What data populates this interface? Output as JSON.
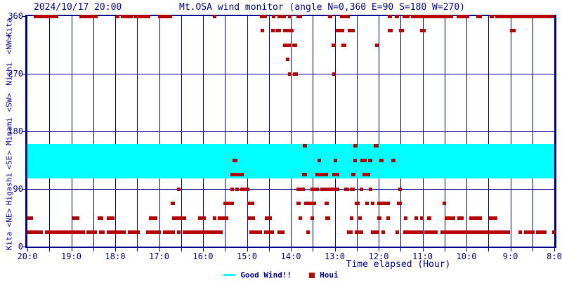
{
  "header": {
    "timestamp": "2024/10/17 20:00",
    "title": "Mt.OSA wind monitor (angle N=0,360 E=90 S=180 W=270)"
  },
  "colors": {
    "axis": "#000090",
    "marker": "#b80000",
    "band": "#00ffff",
    "background": "#ffffff"
  },
  "chart_data": {
    "type": "scatter",
    "title": "Mt.OSA wind monitor (angle N=0,360 E=90 S=180 W=270)",
    "timestamp": "2024/10/17 20:00",
    "xlabel": "Time elapsed (Hour)",
    "x_axis": {
      "left_hour": 20,
      "right_hour": 8,
      "tick_labels": [
        "20:0",
        "19:0",
        "18:0",
        "17:0",
        "16:0",
        "15:0",
        "14:0",
        "13:0",
        "12:0",
        "11:0",
        "10:0",
        "9:0",
        "8:0"
      ],
      "minor_ticks_per_hour": 2,
      "grid": true
    },
    "y_axis": {
      "min": 0,
      "max": 360,
      "tick_values": [
        360,
        270,
        180,
        90,
        0
      ],
      "grid": true,
      "compass": [
        {
          "label": "Kita",
          "value": 360
        },
        {
          "label": "<NW>",
          "value": 315
        },
        {
          "label": "Nishi",
          "value": 270
        },
        {
          "label": "<SW>",
          "value": 225
        },
        {
          "label": "Minami",
          "value": 180
        },
        {
          "label": "<SE>",
          "value": 135
        },
        {
          "label": "Higashi",
          "value": 90
        },
        {
          "label": "<NE>",
          "value": 45
        },
        {
          "label": "Kita",
          "value": 0
        }
      ]
    },
    "good_wind_band": {
      "label": "Good Wind!!",
      "range_deg": [
        107,
        160
      ]
    },
    "series": {
      "name": "Houi",
      "marker": "square",
      "segments_by_direction": [
        {
          "dir": 360,
          "t": [
            [
              19.29,
              19.85
            ],
            [
              18.4,
              18.81
            ],
            [
              17.92,
              17.98
            ],
            [
              17.6,
              17.88
            ],
            [
              17.2,
              17.59
            ],
            [
              16.7,
              17.02
            ],
            [
              15.71,
              15.78
            ],
            [
              14.54,
              14.7
            ],
            [
              14.36,
              14.44
            ],
            [
              14.12,
              14.31
            ],
            [
              13.98,
              14.06
            ],
            [
              13.74,
              13.88
            ],
            [
              13.05,
              13.16
            ],
            [
              12.65,
              12.88
            ],
            [
              11.7,
              11.79
            ],
            [
              11.54,
              11.64
            ],
            [
              11.3,
              11.46
            ],
            [
              10.31,
              11.26
            ],
            [
              9.94,
              10.22
            ],
            [
              9.65,
              9.78
            ],
            [
              9.38,
              9.48
            ],
            [
              8.0,
              9.34
            ]
          ]
        },
        {
          "dir": 337.5,
          "t": [
            [
              14.61,
              14.69
            ],
            [
              14.38,
              14.45
            ],
            [
              14.22,
              14.36
            ],
            [
              13.93,
              14.17
            ],
            [
              12.79,
              12.97
            ],
            [
              12.55,
              12.71
            ],
            [
              11.68,
              11.79
            ],
            [
              11.43,
              11.54
            ],
            [
              10.93,
              11.06
            ],
            [
              8.88,
              9.01
            ]
          ]
        },
        {
          "dir": 315,
          "t": [
            [
              13.98,
              14.17
            ],
            [
              13.85,
              13.97
            ],
            [
              12.97,
              13.08
            ],
            [
              12.73,
              12.85
            ],
            [
              12.0,
              12.08
            ]
          ]
        },
        {
          "dir": 292.5,
          "t": [
            [
              14.04,
              14.12
            ]
          ]
        },
        {
          "dir": 270,
          "t": [
            [
              14.0,
              14.07
            ],
            [
              13.84,
              13.96
            ],
            [
              12.97,
              13.06
            ]
          ]
        },
        {
          "dir": 157.5,
          "t": [
            [
              13.64,
              13.73
            ],
            [
              12.48,
              12.58
            ],
            [
              12.0,
              12.11
            ]
          ]
        },
        {
          "dir": 135,
          "t": [
            [
              15.21,
              15.33
            ],
            [
              13.31,
              13.4
            ],
            [
              12.94,
              13.03
            ],
            [
              12.49,
              12.58
            ],
            [
              12.28,
              12.42
            ],
            [
              12.15,
              12.24
            ],
            [
              11.89,
              11.98
            ],
            [
              11.62,
              11.72
            ]
          ]
        },
        {
          "dir": 112.5,
          "t": [
            [
              15.07,
              15.37
            ],
            [
              13.63,
              13.74
            ],
            [
              13.15,
              13.44
            ],
            [
              12.9,
              13.06
            ],
            [
              12.53,
              12.63
            ],
            [
              12.2,
              12.37
            ]
          ]
        },
        {
          "dir": 90,
          "t": [
            [
              16.51,
              16.6
            ],
            [
              15.29,
              15.38
            ],
            [
              15.18,
              15.26
            ],
            [
              14.95,
              15.15
            ],
            [
              13.68,
              13.87
            ],
            [
              13.36,
              13.55
            ],
            [
              12.89,
              13.33
            ],
            [
              12.68,
              12.79
            ],
            [
              12.54,
              12.66
            ],
            [
              12.35,
              12.44
            ],
            [
              12.15,
              12.23
            ],
            [
              11.48,
              11.55
            ]
          ]
        },
        {
          "dir": 67.5,
          "t": [
            [
              16.64,
              16.74
            ],
            [
              15.3,
              15.54
            ],
            [
              14.83,
              14.99
            ],
            [
              13.77,
              13.87
            ],
            [
              13.43,
              13.69
            ],
            [
              13.13,
              13.24
            ],
            [
              12.44,
              12.54
            ],
            [
              12.22,
              12.31
            ],
            [
              12.1,
              12.18
            ],
            [
              11.75,
              12.03
            ],
            [
              11.48,
              11.59
            ],
            [
              10.46,
              10.54
            ]
          ]
        },
        {
          "dir": 45,
          "t": [
            [
              19.88,
              20.0
            ],
            [
              18.81,
              18.98
            ],
            [
              18.27,
              18.4
            ],
            [
              18.02,
              18.2
            ],
            [
              17.04,
              17.23
            ],
            [
              16.39,
              16.71
            ],
            [
              15.93,
              16.11
            ],
            [
              15.7,
              15.77
            ],
            [
              15.42,
              15.66
            ],
            [
              14.81,
              14.97
            ],
            [
              14.44,
              14.6
            ],
            [
              13.74,
              13.82
            ],
            [
              13.48,
              13.56
            ],
            [
              13.1,
              13.21
            ],
            [
              12.59,
              12.66
            ],
            [
              12.39,
              12.47
            ],
            [
              11.94,
              12.03
            ],
            [
              11.75,
              11.83
            ],
            [
              11.37,
              11.43
            ],
            [
              11.11,
              11.18
            ],
            [
              10.98,
              11.06
            ],
            [
              10.8,
              10.9
            ],
            [
              10.26,
              10.5
            ],
            [
              10.07,
              10.21
            ],
            [
              9.65,
              9.94
            ],
            [
              9.3,
              9.49
            ]
          ]
        },
        {
          "dir": 22.5,
          "t": [
            [
              19.65,
              20.0
            ],
            [
              18.69,
              19.6
            ],
            [
              18.42,
              18.65
            ],
            [
              18.24,
              18.37
            ],
            [
              17.76,
              18.2
            ],
            [
              17.44,
              17.71
            ],
            [
              16.96,
              17.29
            ],
            [
              16.64,
              16.91
            ],
            [
              16.54,
              16.6
            ],
            [
              15.55,
              16.47
            ],
            [
              14.65,
              14.95
            ],
            [
              14.38,
              14.61
            ],
            [
              14.14,
              14.3
            ],
            [
              13.57,
              13.65
            ],
            [
              12.6,
              12.72
            ],
            [
              12.36,
              12.54
            ],
            [
              11.99,
              12.18
            ],
            [
              11.86,
              11.94
            ],
            [
              11.54,
              11.62
            ],
            [
              11.0,
              11.44
            ],
            [
              10.66,
              10.96
            ],
            [
              9.01,
              10.59
            ],
            [
              8.74,
              8.82
            ],
            [
              8.45,
              8.69
            ],
            [
              8.18,
              8.41
            ],
            [
              8.0,
              8.05
            ]
          ]
        }
      ]
    }
  }
}
